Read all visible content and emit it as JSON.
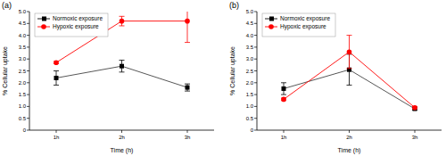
{
  "chart_data": [
    {
      "type": "line",
      "title": "(a)",
      "x_label": "Time (h)",
      "y_label": "% Cellular uptake",
      "categories": [
        "1h",
        "2h",
        "3h"
      ],
      "series": [
        {
          "name": "Normoxic exposure",
          "color": "#000000",
          "marker": "square",
          "values": [
            2.2,
            2.7,
            1.8
          ],
          "errors": [
            0.3,
            0.25,
            0.15
          ]
        },
        {
          "name": "Hypoxic exposure",
          "color": "#ff0000",
          "marker": "circle",
          "values": [
            2.85,
            4.6,
            4.6
          ],
          "errors": [
            0.05,
            0.2,
            0.9
          ]
        }
      ],
      "ylim": [
        0,
        5
      ],
      "yticks": [
        0,
        0.5,
        {
          "value": 1,
          "label": "1.0"
        },
        1.5,
        {
          "value": 2,
          "label": "2.0"
        },
        2.5,
        {
          "value": 3,
          "label": "3.0"
        },
        3.5,
        {
          "value": 4,
          "label": "4.0"
        },
        4.5,
        {
          "value": 5,
          "label": "5.0"
        }
      ],
      "legend": "upper left",
      "grid": false
    },
    {
      "type": "line",
      "title": "(b)",
      "x_label": "Time (h)",
      "y_label": "% Cellular uptake",
      "categories": [
        "1h",
        "2h",
        "3h"
      ],
      "series": [
        {
          "name": "Normoxic exposure",
          "color": "#000000",
          "marker": "square",
          "values": [
            1.75,
            2.55,
            0.9
          ],
          "errors": [
            0.25,
            0.65,
            0.05
          ]
        },
        {
          "name": "Hypoxic exposure",
          "color": "#ff0000",
          "marker": "circle",
          "values": [
            1.3,
            3.3,
            0.95
          ],
          "errors": [
            0.05,
            0.7,
            0.05
          ]
        }
      ],
      "ylim": [
        0,
        5
      ],
      "yticks": [
        0,
        0.5,
        {
          "value": 1,
          "label": "1.0"
        },
        1.5,
        {
          "value": 2,
          "label": "2.0"
        },
        2.5,
        {
          "value": 3,
          "label": "3.0"
        },
        3.5,
        {
          "value": 4,
          "label": "4.0"
        },
        4.5,
        {
          "value": 5,
          "label": "5.0"
        }
      ],
      "legend": "upper left",
      "grid": false
    }
  ]
}
